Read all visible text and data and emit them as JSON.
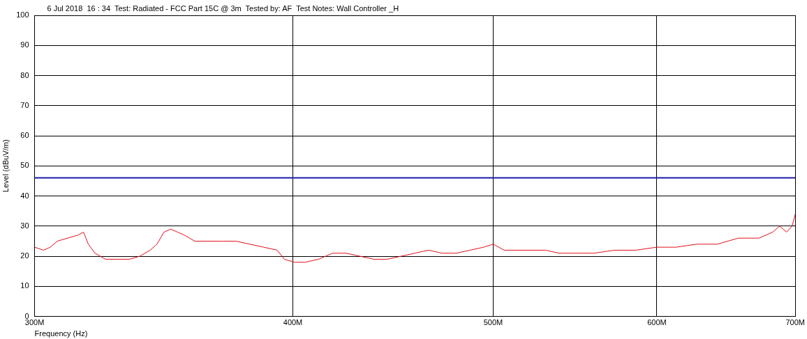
{
  "chart_data": {
    "type": "line",
    "title": "6 Jul 2018  16 : 34  Test: Radiated - FCC Part 15C @ 3m  Tested by: AF  Test Notes: Wall Controller _H",
    "xlabel": "Frequency (Hz)",
    "ylabel": "Level (dBuV/m)",
    "log": "x",
    "grid": true,
    "legend": false,
    "marker": "none",
    "line_style": "solid",
    "xlim": [
      300000000,
      700000000
    ],
    "xticks": [
      {
        "value": 300000000,
        "label": "300M"
      },
      {
        "value": 400000000,
        "label": "400M"
      },
      {
        "value": 500000000,
        "label": "500M"
      },
      {
        "value": 600000000,
        "label": "600M"
      },
      {
        "value": 700000000,
        "label": "700M"
      }
    ],
    "ylim": [
      0,
      100
    ],
    "yticks": [
      0,
      10,
      20,
      30,
      40,
      50,
      60,
      70,
      80,
      90,
      100
    ],
    "ref_lines": [
      {
        "axis": "y",
        "value": 46,
        "color": "#1a1aa8"
      }
    ],
    "series": [
      {
        "color": "#e0101a",
        "x": [
          300000000,
          303000000,
          305300000,
          307700000,
          311200000,
          314800000,
          316800000,
          318500000,
          320900000,
          324600000,
          329700000,
          333500000,
          337300000,
          341200000,
          343800000,
          346500000,
          349100000,
          351800000,
          354500000,
          358600000,
          364200000,
          369800000,
          375500000,
          381300000,
          387200000,
          393100000,
          396200000,
          400700000,
          405400000,
          411700000,
          418000000,
          424500000,
          431000000,
          437700000,
          444400000,
          451300000,
          458200000,
          465300000,
          472400000,
          479800000,
          487200000,
          494700000,
          500000000,
          506200000,
          517900000,
          530000000,
          538200000,
          546500000,
          559300000,
          572300000,
          585900000,
          600000000,
          613000000,
          627200000,
          641800000,
          656900000,
          672200000,
          682600000,
          687900000,
          693200000,
          697500000,
          700000000
        ],
        "values": [
          23,
          22,
          23,
          25,
          26,
          27,
          28,
          24,
          21,
          19,
          19,
          19,
          20,
          22,
          24,
          28,
          29,
          28,
          27,
          25,
          25,
          25,
          25,
          24,
          23,
          22,
          19,
          18,
          18,
          19,
          21,
          21,
          20,
          19,
          19,
          20,
          21,
          22,
          21,
          21,
          22,
          23,
          24,
          22,
          22,
          22,
          21,
          21,
          21,
          22,
          22,
          23,
          23,
          24,
          24,
          26,
          26,
          28,
          30,
          28,
          30,
          34
        ]
      }
    ]
  }
}
